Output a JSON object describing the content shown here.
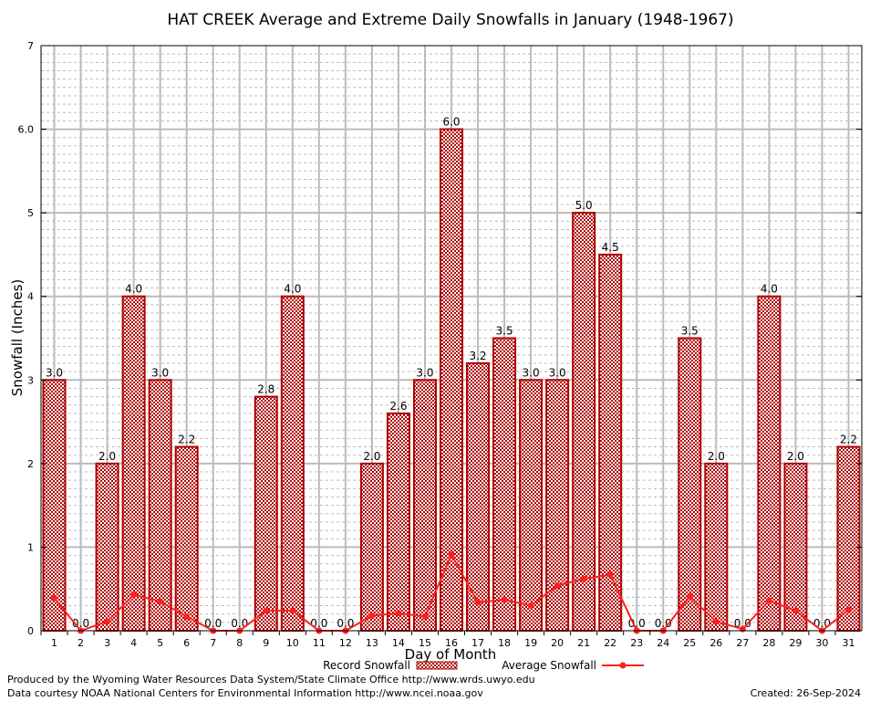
{
  "chart_data": {
    "type": "bar",
    "title": "HAT CREEK Average and Extreme Daily Snowfalls in January (1948-1967)",
    "xlabel": "Day of Month",
    "ylabel": "Snowfall (Inches)",
    "ylim": [
      0,
      7
    ],
    "ytick_labels": [
      "0",
      "1",
      "2",
      "3",
      "4",
      "5",
      "6.0",
      "7"
    ],
    "grid": true,
    "legend_placement": "bottom",
    "categories": [
      "1",
      "2",
      "3",
      "4",
      "5",
      "6",
      "7",
      "8",
      "9",
      "10",
      "11",
      "12",
      "13",
      "14",
      "15",
      "16",
      "17",
      "18",
      "19",
      "20",
      "21",
      "22",
      "23",
      "24",
      "25",
      "26",
      "27",
      "28",
      "29",
      "30",
      "31"
    ],
    "series": [
      {
        "name": "Record Snowfall",
        "type": "bar",
        "color": "#b00000",
        "values": [
          3.0,
          0.0,
          2.0,
          4.0,
          3.0,
          2.2,
          0.0,
          0.0,
          2.8,
          4.0,
          0.0,
          0.0,
          2.0,
          2.6,
          3.0,
          6.0,
          3.2,
          3.5,
          3.0,
          3.0,
          5.0,
          4.5,
          0.0,
          0.0,
          3.5,
          2.0,
          0.0,
          4.0,
          2.0,
          0.0,
          2.2
        ]
      },
      {
        "name": "Average Snowfall",
        "type": "line",
        "color": "#ff2020",
        "values": [
          0.39,
          0.0,
          0.11,
          0.43,
          0.35,
          0.17,
          0.0,
          0.0,
          0.24,
          0.24,
          0.0,
          0.0,
          0.18,
          0.21,
          0.17,
          0.91,
          0.34,
          0.37,
          0.3,
          0.54,
          0.62,
          0.67,
          0.0,
          0.0,
          0.41,
          0.11,
          0.02,
          0.36,
          0.24,
          0.0,
          0.25
        ]
      }
    ]
  },
  "footer": {
    "produced_by": "Produced by the Wyoming Water Resources Data System/State Climate Office http://www.wrds.uwyo.edu",
    "courtesy": "Data courtesy NOAA National Centers for Environmental Information http://www.ncei.noaa.gov",
    "created": "Created:  26-Sep-2024"
  }
}
